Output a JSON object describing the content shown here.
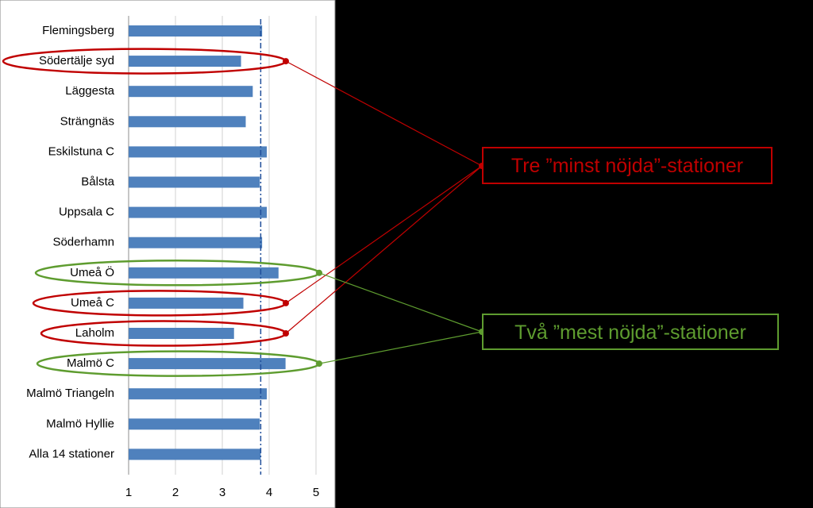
{
  "chart_data": {
    "type": "bar",
    "orientation": "horizontal",
    "categories": [
      "Flemingsberg",
      "Södertälje syd",
      "Läggesta",
      "Strängnäs",
      "Eskilstuna C",
      "Bålsta",
      "Uppsala C",
      "Söderhamn",
      "Umeå Ö",
      "Umeå C",
      "Laholm",
      "Malmö C",
      "Malmö Triangeln",
      "Malmö Hyllie",
      "Alla 14 stationer"
    ],
    "values": [
      3.85,
      3.4,
      3.65,
      3.5,
      3.95,
      3.8,
      3.95,
      3.85,
      4.2,
      3.45,
      3.25,
      4.35,
      3.95,
      3.8,
      3.82
    ],
    "reference_line": 3.82,
    "xlim": [
      1,
      5
    ],
    "xticks": [
      "1",
      "2",
      "3",
      "4",
      "5"
    ],
    "grid": true,
    "bar_color": "#4F81BD",
    "reference_line_color": "#1F4E9A"
  },
  "callouts": {
    "least_satisfied": {
      "label": "Tre ”minst nöjda”-stationer",
      "color": "#C00000",
      "stations": [
        "Södertälje syd",
        "Umeå C",
        "Laholm"
      ]
    },
    "most_satisfied": {
      "label": "Två ”mest nöjda”-stationer",
      "color": "#5E9C2F",
      "stations": [
        "Umeå Ö",
        "Malmö C"
      ]
    }
  }
}
